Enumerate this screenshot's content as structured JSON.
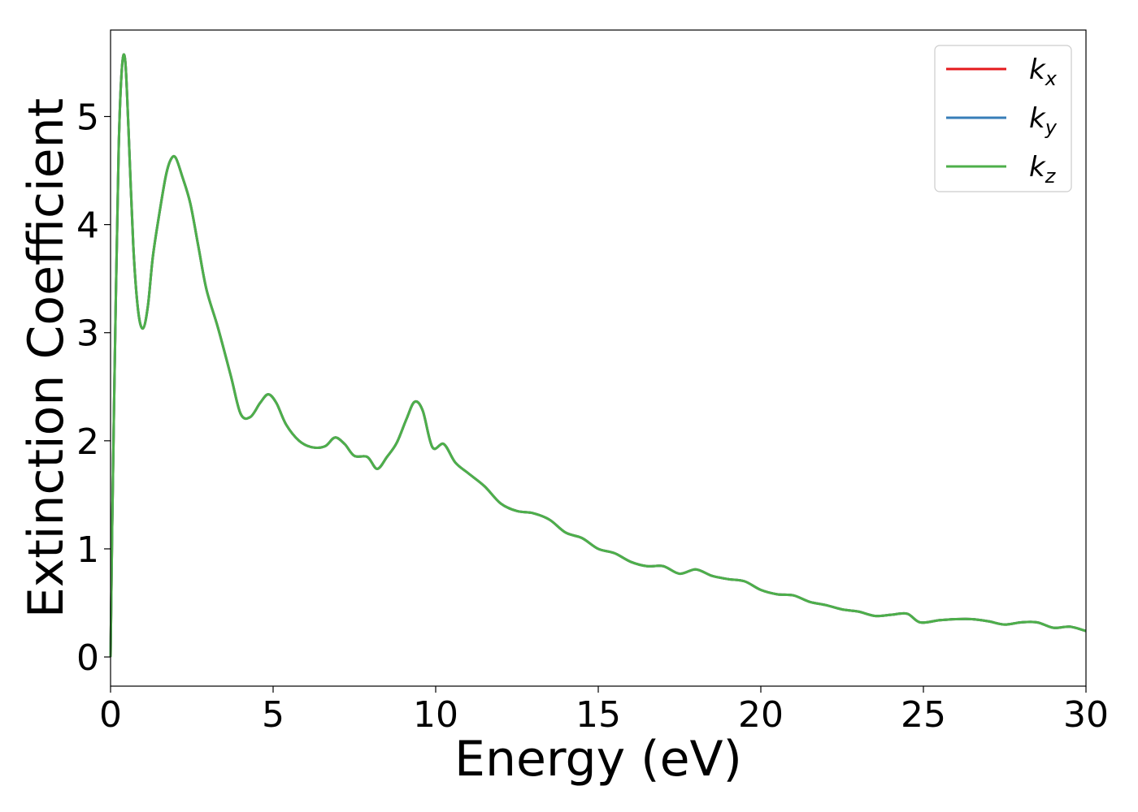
{
  "chart_data": {
    "type": "line",
    "xlabel": "Energy (eV)",
    "ylabel": "Extinction Coefficient",
    "xlim": [
      0,
      30
    ],
    "ylim": [
      -0.27,
      5.8
    ],
    "xticks": [
      "0",
      "5",
      "10",
      "15",
      "20",
      "25",
      "30"
    ],
    "yticks": [
      "0",
      "1",
      "2",
      "3",
      "4",
      "5"
    ],
    "grid": false,
    "legend_position": "top-right",
    "legend": [
      {
        "base": "k",
        "sub": "x",
        "color": "#e41a1c"
      },
      {
        "base": "k",
        "sub": "y",
        "color": "#377eb8"
      },
      {
        "base": "k",
        "sub": "z",
        "color": "#4daf4a"
      }
    ],
    "x": [
      0,
      0.05,
      0.15,
      0.25,
      0.35,
      0.45,
      0.55,
      0.7,
      0.85,
      1.0,
      1.15,
      1.3,
      1.5,
      1.7,
      1.85,
      2.0,
      2.2,
      2.45,
      2.7,
      2.95,
      3.3,
      3.7,
      4.0,
      4.3,
      4.6,
      4.85,
      5.1,
      5.4,
      5.8,
      6.2,
      6.6,
      6.9,
      7.2,
      7.5,
      7.9,
      8.2,
      8.5,
      8.8,
      9.1,
      9.35,
      9.6,
      9.9,
      10.25,
      10.6,
      11.0,
      11.5,
      12.0,
      12.5,
      13.0,
      13.5,
      14.0,
      14.5,
      15.0,
      15.5,
      16.0,
      16.5,
      17.0,
      17.5,
      18.0,
      18.5,
      19.0,
      19.5,
      20.0,
      20.5,
      21.0,
      21.5,
      22.0,
      22.5,
      23.0,
      23.5,
      24.0,
      24.5,
      24.9,
      25.5,
      26.0,
      26.5,
      27.0,
      27.5,
      28.0,
      28.5,
      29.0,
      29.5,
      30.0
    ],
    "series": [
      {
        "name": "k_x",
        "color": "#e41a1c",
        "values": [
          0,
          1.2,
          3.1,
          4.7,
          5.45,
          5.52,
          4.9,
          3.8,
          3.2,
          3.04,
          3.25,
          3.7,
          4.1,
          4.45,
          4.6,
          4.62,
          4.45,
          4.2,
          3.8,
          3.4,
          3.05,
          2.6,
          2.25,
          2.22,
          2.35,
          2.43,
          2.35,
          2.15,
          2.0,
          1.94,
          1.95,
          2.03,
          1.97,
          1.86,
          1.85,
          1.74,
          1.85,
          1.98,
          2.2,
          2.36,
          2.28,
          1.94,
          1.97,
          1.8,
          1.7,
          1.58,
          1.42,
          1.35,
          1.33,
          1.27,
          1.15,
          1.1,
          1.0,
          0.96,
          0.88,
          0.84,
          0.84,
          0.77,
          0.81,
          0.75,
          0.72,
          0.7,
          0.62,
          0.58,
          0.57,
          0.51,
          0.48,
          0.44,
          0.42,
          0.38,
          0.39,
          0.4,
          0.32,
          0.34,
          0.35,
          0.35,
          0.33,
          0.3,
          0.32,
          0.32,
          0.27,
          0.28,
          0.24
        ]
      },
      {
        "name": "k_y",
        "color": "#377eb8",
        "values": [
          0,
          1.2,
          3.1,
          4.7,
          5.45,
          5.52,
          4.9,
          3.8,
          3.2,
          3.04,
          3.25,
          3.7,
          4.1,
          4.45,
          4.6,
          4.62,
          4.45,
          4.2,
          3.8,
          3.4,
          3.05,
          2.6,
          2.25,
          2.22,
          2.35,
          2.43,
          2.35,
          2.15,
          2.0,
          1.94,
          1.95,
          2.03,
          1.97,
          1.86,
          1.85,
          1.74,
          1.85,
          1.98,
          2.2,
          2.36,
          2.28,
          1.94,
          1.97,
          1.8,
          1.7,
          1.58,
          1.42,
          1.35,
          1.33,
          1.27,
          1.15,
          1.1,
          1.0,
          0.96,
          0.88,
          0.84,
          0.84,
          0.77,
          0.81,
          0.75,
          0.72,
          0.7,
          0.62,
          0.58,
          0.57,
          0.51,
          0.48,
          0.44,
          0.42,
          0.38,
          0.39,
          0.4,
          0.32,
          0.34,
          0.35,
          0.35,
          0.33,
          0.3,
          0.32,
          0.32,
          0.27,
          0.28,
          0.24
        ]
      },
      {
        "name": "k_z",
        "color": "#4daf4a",
        "values": [
          0,
          1.2,
          3.1,
          4.7,
          5.45,
          5.52,
          4.9,
          3.8,
          3.2,
          3.04,
          3.25,
          3.7,
          4.1,
          4.45,
          4.6,
          4.62,
          4.45,
          4.2,
          3.8,
          3.4,
          3.05,
          2.6,
          2.25,
          2.22,
          2.35,
          2.43,
          2.35,
          2.15,
          2.0,
          1.94,
          1.95,
          2.03,
          1.97,
          1.86,
          1.85,
          1.74,
          1.85,
          1.98,
          2.2,
          2.36,
          2.28,
          1.94,
          1.97,
          1.8,
          1.7,
          1.58,
          1.42,
          1.35,
          1.33,
          1.27,
          1.15,
          1.1,
          1.0,
          0.96,
          0.88,
          0.84,
          0.84,
          0.77,
          0.81,
          0.75,
          0.72,
          0.7,
          0.62,
          0.58,
          0.57,
          0.51,
          0.48,
          0.44,
          0.42,
          0.38,
          0.39,
          0.4,
          0.32,
          0.34,
          0.35,
          0.35,
          0.33,
          0.3,
          0.32,
          0.32,
          0.27,
          0.28,
          0.24
        ]
      }
    ]
  }
}
